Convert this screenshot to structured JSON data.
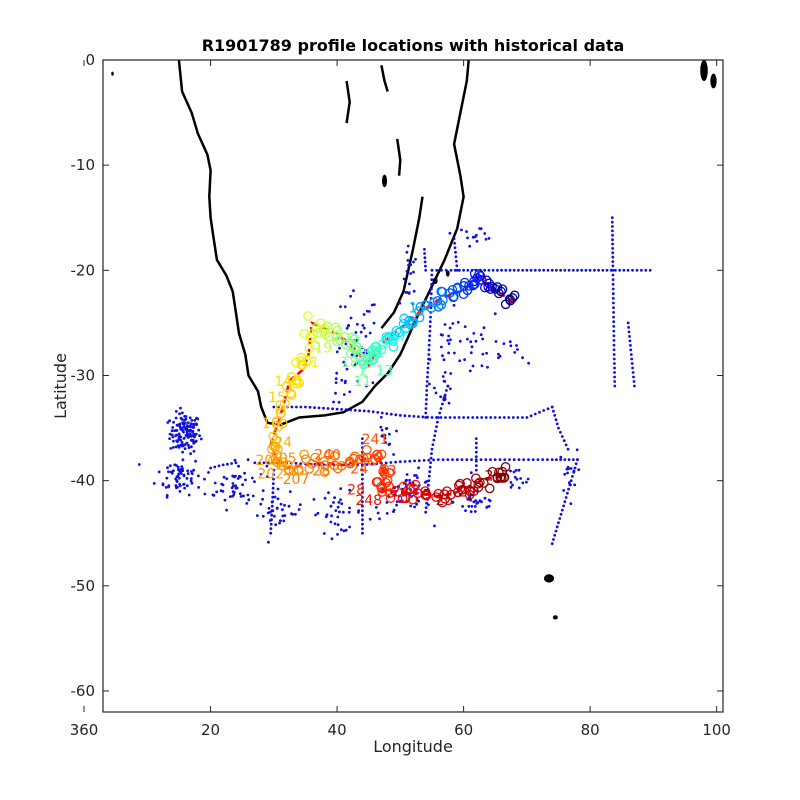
{
  "chart_data": {
    "type": "scatter",
    "title": "R1901789 profile locations with historical data",
    "xlabel": "Longitude",
    "ylabel": "Latitude",
    "xlim": [
      3,
      101
    ],
    "ylim": [
      -62,
      0
    ],
    "xticks": [
      {
        "value": 0,
        "label": "360"
      },
      {
        "value": 20,
        "label": "20"
      },
      {
        "value": 40,
        "label": "40"
      },
      {
        "value": 60,
        "label": "60"
      },
      {
        "value": 80,
        "label": "80"
      },
      {
        "value": 100,
        "label": "100"
      }
    ],
    "yticks": [
      {
        "value": 0,
        "label": "0"
      },
      {
        "value": -10,
        "label": "-10"
      },
      {
        "value": -20,
        "label": "-20"
      },
      {
        "value": -30,
        "label": "-30"
      },
      {
        "value": -40,
        "label": "-40"
      },
      {
        "value": -50,
        "label": "-50"
      },
      {
        "value": -60,
        "label": "-60"
      }
    ],
    "grid": false,
    "colors": {
      "coast": "#000000",
      "historical": "#1010e0",
      "track": "#ff0000",
      "axis": "#262626"
    },
    "coastlines": [
      [
        [
          15,
          0
        ],
        [
          15.5,
          -3
        ],
        [
          17,
          -5
        ],
        [
          18,
          -7
        ],
        [
          19.5,
          -9
        ],
        [
          20,
          -10.5
        ],
        [
          19.8,
          -13
        ],
        [
          20,
          -15
        ],
        [
          20.5,
          -17
        ],
        [
          21,
          -19
        ],
        [
          22.5,
          -20.5
        ],
        [
          23.5,
          -22
        ],
        [
          24,
          -24
        ],
        [
          24.5,
          -26
        ],
        [
          25.5,
          -28
        ],
        [
          26,
          -30
        ],
        [
          27.5,
          -31.5
        ],
        [
          28,
          -33
        ],
        [
          29,
          -34.5
        ],
        [
          31,
          -34.7
        ],
        [
          34,
          -34
        ],
        [
          38,
          -33.8
        ],
        [
          41,
          -33.5
        ],
        [
          44,
          -32.5
        ],
        [
          46,
          -31
        ],
        [
          48,
          -29.8
        ],
        [
          50,
          -28
        ],
        [
          51.5,
          -26
        ],
        [
          53,
          -24
        ],
        [
          55,
          -21.5
        ],
        [
          57,
          -19
        ],
        [
          59,
          -16
        ],
        [
          60,
          -13
        ],
        [
          59.5,
          -11
        ],
        [
          58.5,
          -8
        ],
        [
          59.5,
          -5
        ],
        [
          60.5,
          -2
        ],
        [
          60.8,
          0
        ]
      ],
      [
        [
          47,
          -25.5
        ],
        [
          49,
          -24
        ],
        [
          50.5,
          -22
        ],
        [
          52,
          -18
        ],
        [
          53,
          -15
        ],
        [
          53.5,
          -13
        ]
      ],
      [
        [
          49.5,
          -7.5
        ],
        [
          50,
          -9.5
        ],
        [
          49.8,
          -11
        ]
      ],
      [
        [
          41.5,
          -2
        ],
        [
          42,
          -4
        ],
        [
          41.5,
          -6
        ]
      ],
      [
        [
          47,
          -0.5
        ],
        [
          47.5,
          -2
        ],
        [
          48,
          -3
        ]
      ]
    ],
    "islands": [
      {
        "lon": 98,
        "lat": -1,
        "rx": 0.6,
        "ry": 1.0
      },
      {
        "lon": 99.5,
        "lat": -2,
        "rx": 0.5,
        "ry": 0.7
      },
      {
        "lon": 73.5,
        "lat": -49.3,
        "rx": 0.8,
        "ry": 0.4
      },
      {
        "lon": 74.5,
        "lat": -53,
        "rx": 0.4,
        "ry": 0.2
      },
      {
        "lon": 55.5,
        "lat": -21,
        "rx": 0.4,
        "ry": 0.3
      },
      {
        "lon": 57.5,
        "lat": -20.3,
        "rx": 0.3,
        "ry": 0.3
      },
      {
        "lon": 4.5,
        "lat": -1.3,
        "rx": 0.2,
        "ry": 0.2
      },
      {
        "lon": 47.5,
        "lat": -11.5,
        "rx": 0.4,
        "ry": 0.6
      }
    ],
    "historical": {
      "polylines": [
        [
          [
            55,
            -20
          ],
          [
            58,
            -20
          ],
          [
            62,
            -20
          ],
          [
            66,
            -20
          ],
          [
            70,
            -20
          ],
          [
            74,
            -20
          ],
          [
            78,
            -20
          ],
          [
            82,
            -20
          ],
          [
            86,
            -20
          ],
          [
            89.5,
            -20
          ]
        ],
        [
          [
            55,
            -20
          ],
          [
            54.8,
            -24
          ],
          [
            54.5,
            -28
          ],
          [
            54.2,
            -31
          ],
          [
            54,
            -34
          ]
        ],
        [
          [
            53.8,
            -18
          ],
          [
            54,
            -20
          ]
        ],
        [
          [
            83.5,
            -15
          ],
          [
            83.6,
            -20
          ],
          [
            83.7,
            -24
          ],
          [
            83.8,
            -28
          ],
          [
            83.9,
            -31
          ]
        ],
        [
          [
            30,
            -33
          ],
          [
            35,
            -33
          ],
          [
            40,
            -33.2
          ],
          [
            45,
            -33.4
          ],
          [
            50,
            -33.8
          ],
          [
            55,
            -34
          ],
          [
            60,
            -34
          ],
          [
            65,
            -34
          ],
          [
            70,
            -34
          ],
          [
            74,
            -33
          ]
        ],
        [
          [
            27,
            -38.3
          ],
          [
            32,
            -38.3
          ],
          [
            38,
            -38.5
          ],
          [
            44,
            -38.5
          ],
          [
            50,
            -38.2
          ],
          [
            56,
            -38
          ],
          [
            62,
            -38
          ],
          [
            68,
            -38
          ],
          [
            74,
            -38
          ],
          [
            78,
            -38
          ]
        ],
        [
          [
            78,
            -38
          ],
          [
            77,
            -40
          ],
          [
            76,
            -42
          ],
          [
            75,
            -44
          ],
          [
            74,
            -46
          ]
        ],
        [
          [
            74,
            -33
          ],
          [
            75,
            -35
          ],
          [
            76.5,
            -37
          ]
        ],
        [
          [
            57.5,
            -31
          ],
          [
            56,
            -34
          ],
          [
            55,
            -37
          ],
          [
            54.5,
            -40
          ],
          [
            54,
            -43
          ]
        ],
        [
          [
            44,
            -45
          ],
          [
            44,
            -42
          ],
          [
            44,
            -39
          ],
          [
            44,
            -36
          ]
        ],
        [
          [
            29.5,
            -45
          ],
          [
            29.8,
            -42
          ],
          [
            30,
            -39
          ]
        ],
        [
          [
            86,
            -25
          ],
          [
            86.5,
            -28
          ],
          [
            87,
            -31
          ]
        ],
        [
          [
            24,
            -38.3
          ],
          [
            22,
            -38.5
          ],
          [
            20,
            -38.8
          ]
        ],
        [
          [
            58.5,
            -17
          ],
          [
            59,
            -20
          ]
        ],
        [
          [
            62,
            -36
          ],
          [
            62,
            -39
          ]
        ]
      ],
      "clusters": [
        {
          "lon": 16,
          "lat": -35.5,
          "slon": 2.0,
          "slat": 1.6,
          "n": 130
        },
        {
          "lon": 15,
          "lat": -39.5,
          "slon": 3.0,
          "slat": 1.5,
          "n": 60
        },
        {
          "lon": 24,
          "lat": -40.5,
          "slon": 4.0,
          "slat": 1.8,
          "n": 55
        },
        {
          "lon": 31,
          "lat": -43,
          "slon": 3.0,
          "slat": 1.4,
          "n": 30
        },
        {
          "lon": 40,
          "lat": -43,
          "slon": 3.5,
          "slat": 1.6,
          "n": 35
        },
        {
          "lon": 50,
          "lat": -42,
          "slon": 4.0,
          "slat": 1.5,
          "n": 35
        },
        {
          "lon": 62,
          "lat": -42,
          "slon": 3.0,
          "slat": 1.4,
          "n": 30
        },
        {
          "lon": 43,
          "lat": -27,
          "slon": 3.0,
          "slat": 4.0,
          "n": 40
        },
        {
          "lon": 51.5,
          "lat": -21.5,
          "slon": 1.0,
          "slat": 3.0,
          "n": 20
        },
        {
          "lon": 58,
          "lat": -27,
          "slon": 2.5,
          "slat": 2.5,
          "n": 20
        },
        {
          "lon": 63,
          "lat": -27,
          "slon": 3.0,
          "slat": 2.5,
          "n": 20
        },
        {
          "lon": 57,
          "lat": -31,
          "slon": 1.2,
          "slat": 1.5,
          "n": 15
        },
        {
          "lon": 52,
          "lat": -40.5,
          "slon": 2.5,
          "slat": 1.2,
          "n": 25
        },
        {
          "lon": 62,
          "lat": -16.5,
          "slon": 3.0,
          "slat": 0.5,
          "n": 14
        },
        {
          "lon": 47.5,
          "lat": -36,
          "slon": 1.0,
          "slat": 1.5,
          "n": 15
        },
        {
          "lon": 40.5,
          "lat": -30,
          "slon": 1.5,
          "slat": 2.5,
          "n": 15
        },
        {
          "lon": 76.5,
          "lat": -39.5,
          "slon": 1.2,
          "slat": 2.0,
          "n": 15
        },
        {
          "lon": 68,
          "lat": -40,
          "slon": 2.5,
          "slat": 1.0,
          "n": 15
        },
        {
          "lon": 68,
          "lat": -28,
          "slon": 2.0,
          "slat": 1.5,
          "n": 10
        }
      ]
    },
    "float_track": [
      {
        "lon": 68,
        "lat": -23,
        "color": "#00008b"
      },
      {
        "lon": 66,
        "lat": -22.3,
        "color": "#0000b0"
      },
      {
        "lon": 64,
        "lat": -21.5,
        "color": "#0000d5"
      },
      {
        "lon": 62.5,
        "lat": -20.6,
        "color": "#0010ff"
      },
      {
        "lon": 61,
        "lat": -21.3,
        "color": "#0030ff"
      },
      {
        "lon": 59.5,
        "lat": -22,
        "color": "#0050ff"
      },
      {
        "lon": 57.5,
        "lat": -22.4,
        "color": "#0070ff"
      },
      {
        "lon": 55.5,
        "lat": -23,
        "color": "#0090ff"
      },
      {
        "lon": 53,
        "lat": -24,
        "color": "#00b0ff"
      },
      {
        "lon": 51,
        "lat": -25,
        "color": "#00d0ff"
      },
      {
        "lon": 49,
        "lat": -26,
        "color": "#10f0f0"
      },
      {
        "lon": 47,
        "lat": -27,
        "color": "#30ffd0"
      },
      {
        "lon": 46,
        "lat": -28,
        "color": "#40ffc0"
      },
      {
        "lon": 45,
        "lat": -29,
        "color": "#50ffb0"
      },
      {
        "lon": 43.5,
        "lat": -28,
        "color": "#70ff90"
      },
      {
        "lon": 42,
        "lat": -27,
        "color": "#90ff70"
      },
      {
        "lon": 40,
        "lat": -26,
        "color": "#b0ff50"
      },
      {
        "lon": 38,
        "lat": -25.5,
        "color": "#d0ff30"
      },
      {
        "lon": 36,
        "lat": -25,
        "color": "#e0ff20"
      },
      {
        "lon": 35.5,
        "lat": -28,
        "color": "#f0f010"
      },
      {
        "lon": 34.5,
        "lat": -29.5,
        "color": "#ffe000"
      },
      {
        "lon": 32.5,
        "lat": -30.5,
        "color": "#ffd000"
      },
      {
        "lon": 31,
        "lat": -34,
        "color": "#ffc000"
      },
      {
        "lon": 29.5,
        "lat": -36.5,
        "color": "#ffb000"
      },
      {
        "lon": 30.5,
        "lat": -38,
        "color": "#ffa000"
      },
      {
        "lon": 32,
        "lat": -38.8,
        "color": "#ff9000"
      },
      {
        "lon": 35,
        "lat": -38.5,
        "color": "#ff8000"
      },
      {
        "lon": 38,
        "lat": -38.3,
        "color": "#ff7000"
      },
      {
        "lon": 41,
        "lat": -38.5,
        "color": "#ff6000"
      },
      {
        "lon": 44,
        "lat": -38,
        "color": "#ff5000"
      },
      {
        "lon": 46.5,
        "lat": -37.5,
        "color": "#ff4000"
      },
      {
        "lon": 47.5,
        "lat": -39.5,
        "color": "#ff3000"
      },
      {
        "lon": 47,
        "lat": -41,
        "color": "#ff2000"
      },
      {
        "lon": 50,
        "lat": -41,
        "color": "#f51000"
      },
      {
        "lon": 53,
        "lat": -41.2,
        "color": "#e00000"
      },
      {
        "lon": 56,
        "lat": -41.5,
        "color": "#cc0000"
      },
      {
        "lon": 58.5,
        "lat": -41.2,
        "color": "#b80000"
      },
      {
        "lon": 61,
        "lat": -40.5,
        "color": "#a50000"
      },
      {
        "lon": 63.5,
        "lat": -39.8,
        "color": "#900000"
      },
      {
        "lon": 66,
        "lat": -39.6,
        "color": "#800000"
      }
    ],
    "profile_labels": [
      {
        "text": "1",
        "lon": 52,
        "lat": -24,
        "color": "#00c0ff"
      },
      {
        "text": "1",
        "lon": 46.8,
        "lat": -28.3,
        "color": "#40ffc0"
      },
      {
        "text": "17",
        "lon": 49.7,
        "lat": -26.7,
        "color": "#20ffe0"
      },
      {
        "text": "18",
        "lon": 42,
        "lat": -29.2,
        "color": "#80ff80"
      },
      {
        "text": "1",
        "lon": 44,
        "lat": -30,
        "color": "#70ff90"
      },
      {
        "text": "13",
        "lon": 47.5,
        "lat": -30,
        "color": "#50ffb0"
      },
      {
        "text": "11",
        "lon": 44,
        "lat": -31,
        "color": "#70ff90"
      },
      {
        "text": "19",
        "lon": 37.8,
        "lat": -27.8,
        "color": "#c0ff40"
      },
      {
        "text": "1",
        "lon": 36.5,
        "lat": -29.2,
        "color": "#f0f010"
      },
      {
        "text": "14",
        "lon": 31.5,
        "lat": -31,
        "color": "#ffe000"
      },
      {
        "text": "15",
        "lon": 30.5,
        "lat": -32.5,
        "color": "#ffd000"
      },
      {
        "text": "16",
        "lon": 29.5,
        "lat": -35,
        "color": "#ffc000"
      },
      {
        "text": "24",
        "lon": 31.5,
        "lat": -36.8,
        "color": "#ffb000"
      },
      {
        "text": "20",
        "lon": 28.5,
        "lat": -38.5,
        "color": "#ffa000"
      },
      {
        "text": "202",
        "lon": 29.5,
        "lat": -39.8,
        "color": "#ffa000"
      },
      {
        "text": "205",
        "lon": 31.5,
        "lat": -38.3,
        "color": "#ff9000"
      },
      {
        "text": "207",
        "lon": 33.5,
        "lat": -40.3,
        "color": "#ff8000"
      },
      {
        "text": "28",
        "lon": 37.5,
        "lat": -39.5,
        "color": "#ff7000"
      },
      {
        "text": "240",
        "lon": 38.5,
        "lat": -38,
        "color": "#ff6000"
      },
      {
        "text": "241",
        "lon": 46,
        "lat": -36.5,
        "color": "#ff5000"
      },
      {
        "text": "24",
        "lon": 43.5,
        "lat": -39.3,
        "color": "#ff5000"
      },
      {
        "text": "23",
        "lon": 48,
        "lat": -39.5,
        "color": "#ff3000"
      },
      {
        "text": "28",
        "lon": 43,
        "lat": -41.3,
        "color": "#ff2000"
      },
      {
        "text": "248",
        "lon": 45,
        "lat": -42.3,
        "color": "#f01000"
      },
      {
        "text": "24",
        "lon": 50,
        "lat": -41.5,
        "color": "#e00000"
      },
      {
        "text": "25",
        "lon": 57,
        "lat": -42.3,
        "color": "#c00000"
      },
      {
        "text": "20",
        "lon": 60.5,
        "lat": -41.5,
        "color": "#b00000"
      },
      {
        "text": "2",
        "lon": 64,
        "lat": -40,
        "color": "#8b0000"
      }
    ]
  }
}
